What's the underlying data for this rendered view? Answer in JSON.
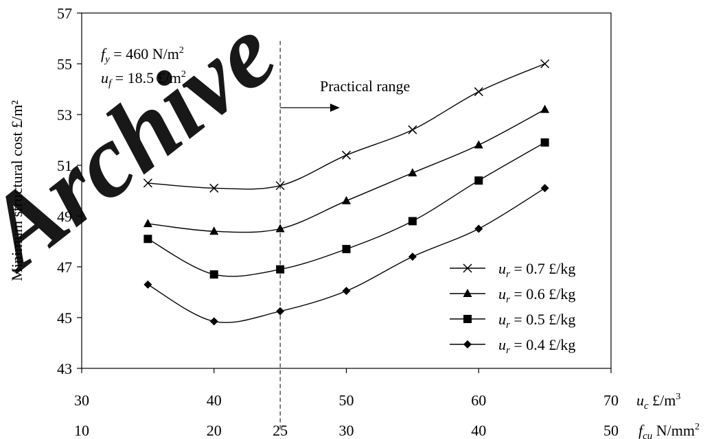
{
  "watermark": "Archive",
  "chart_data": {
    "type": "line",
    "ylabel": "Minimum structural cost £/m²",
    "ylim": [
      43,
      57
    ],
    "yticks": [
      43,
      45,
      47,
      49,
      51,
      53,
      55,
      57
    ],
    "xlim": [
      30,
      70
    ],
    "xticks": [
      30,
      40,
      50,
      60,
      70
    ],
    "xlabel": {
      "var": "u",
      "sub": "c",
      "unit": " £/m",
      "sup": "3"
    },
    "secondary_x": {
      "ticks": [
        {
          "label": "10",
          "at": 30
        },
        {
          "label": "20",
          "at": 40
        },
        {
          "label": "25",
          "at": 45
        },
        {
          "label": "30",
          "at": 50
        },
        {
          "label": "40",
          "at": 60
        },
        {
          "label": "50",
          "at": 70
        }
      ],
      "label": {
        "var": "f",
        "sub": "cu",
        "unit": " N/mm",
        "sup": "2"
      }
    },
    "annotations": {
      "fy": {
        "var": "f",
        "sub": "y",
        "text": " = 460 N/m",
        "sup": "2"
      },
      "uf": {
        "var": "u",
        "sub": "f",
        "text": " = 18.5 £/m",
        "sup": "2"
      },
      "practical_range": "Practical range",
      "practical_range_start": 45,
      "practical_range_arrow_end": 49.5
    },
    "legend_position": "bottom-right",
    "x": [
      35,
      40,
      45,
      50,
      55,
      60,
      65
    ],
    "series": [
      {
        "name": "u_r = 0.7 £/kg",
        "label": {
          "var": "u",
          "sub": "r",
          "text": " = 0.7 £/kg"
        },
        "marker": "x",
        "values": [
          50.3,
          50.1,
          50.2,
          51.4,
          52.4,
          53.9,
          55.0
        ]
      },
      {
        "name": "u_r = 0.6 £/kg",
        "label": {
          "var": "u",
          "sub": "r",
          "text": " = 0.6 £/kg"
        },
        "marker": "triangle",
        "values": [
          48.7,
          48.4,
          48.5,
          49.6,
          50.7,
          51.8,
          53.2
        ]
      },
      {
        "name": "u_r = 0.5 £/kg",
        "label": {
          "var": "u",
          "sub": "r",
          "text": " = 0.5 £/kg"
        },
        "marker": "square",
        "values": [
          48.1,
          46.7,
          46.9,
          47.7,
          48.8,
          50.4,
          51.9
        ]
      },
      {
        "name": "u_r = 0.4 £/kg",
        "label": {
          "var": "u",
          "sub": "r",
          "text": " = 0.4 £/kg"
        },
        "marker": "diamond",
        "values": [
          46.3,
          44.85,
          45.25,
          46.05,
          47.4,
          48.5,
          50.1
        ]
      }
    ]
  }
}
